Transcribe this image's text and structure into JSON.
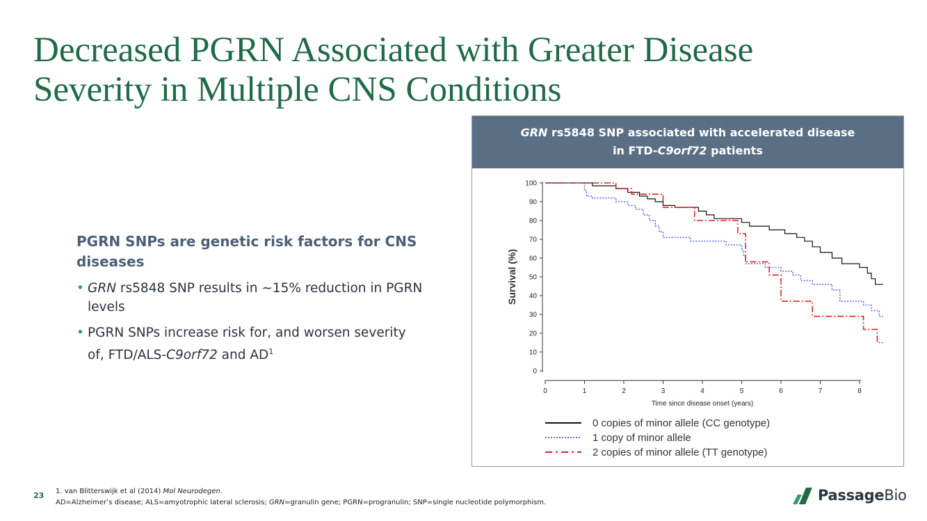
{
  "slide": {
    "title": "Decreased PGRN Associated with Greater Disease Severity in Multiple CNS Conditions",
    "page_number": "23"
  },
  "left": {
    "heading": "PGRN SNPs are genetic risk factors for CNS diseases",
    "bullets": [
      {
        "italic": "GRN",
        "rest": " rs5848 SNP results in ~15% reduction in PGRN levels"
      },
      {
        "pre": "PGRN SNPs increase risk for, and worsen severity of, FTD/ALS-",
        "italic": "C9orf72",
        "post": " and AD",
        "sup": "1"
      }
    ]
  },
  "panel": {
    "header_line1_italic": "GRN",
    "header_line1_rest": " rs5848 SNP associated with accelerated disease",
    "header_line2_pre": "in FTD-",
    "header_line2_italic": "C9orf72",
    "header_line2_post": " patients"
  },
  "footer": {
    "ref_pre": "1. van Blitterswijk et al (2014) ",
    "ref_italic": "Mol Neurodegen",
    "ref_post": ".",
    "abbr_pre": "AD=Alzheimer’s disease; ALS=amyotrophic lateral sclerosis; ",
    "abbr_italic": "GRN",
    "abbr_post": "=granulin gene; PGRN=progranulin; SNP=single nucleotide polymorphism."
  },
  "logo": {
    "brand_bold": "Passage",
    "brand_light": "Bio"
  },
  "chart_data": {
    "type": "line",
    "subtype": "kaplan-meier step",
    "xlabel": "Time since disease onset (years)",
    "ylabel": "Survival (%)",
    "xlim": [
      0,
      8
    ],
    "ylim": [
      0,
      100
    ],
    "xticks": [
      0,
      1,
      2,
      3,
      4,
      5,
      6,
      7,
      8
    ],
    "yticks": [
      0,
      10,
      20,
      30,
      40,
      50,
      60,
      70,
      80,
      90,
      100
    ],
    "series": [
      {
        "name": "0 copies of minor allele (CC genotype)",
        "color": "#111111",
        "style": "solid",
        "points": [
          [
            0,
            100
          ],
          [
            1.2,
            100
          ],
          [
            1.2,
            98.5
          ],
          [
            1.8,
            98.5
          ],
          [
            1.8,
            97
          ],
          [
            2.1,
            97
          ],
          [
            2.1,
            95
          ],
          [
            2.4,
            95
          ],
          [
            2.4,
            93
          ],
          [
            2.6,
            93
          ],
          [
            2.6,
            91.5
          ],
          [
            2.8,
            91.5
          ],
          [
            2.8,
            90
          ],
          [
            3.0,
            90
          ],
          [
            3.0,
            88
          ],
          [
            3.3,
            88
          ],
          [
            3.3,
            87
          ],
          [
            3.9,
            87
          ],
          [
            3.9,
            85
          ],
          [
            4.1,
            85
          ],
          [
            4.1,
            83
          ],
          [
            4.3,
            83
          ],
          [
            4.3,
            81
          ],
          [
            5.0,
            81
          ],
          [
            5.0,
            79
          ],
          [
            5.2,
            79
          ],
          [
            5.2,
            77
          ],
          [
            5.7,
            77
          ],
          [
            5.7,
            75
          ],
          [
            6.1,
            75
          ],
          [
            6.1,
            73
          ],
          [
            6.4,
            73
          ],
          [
            6.4,
            71
          ],
          [
            6.6,
            71
          ],
          [
            6.6,
            69
          ],
          [
            6.8,
            69
          ],
          [
            6.8,
            66
          ],
          [
            7.0,
            66
          ],
          [
            7.0,
            63
          ],
          [
            7.3,
            63
          ],
          [
            7.3,
            60
          ],
          [
            7.55,
            60
          ],
          [
            7.55,
            57
          ],
          [
            8.0,
            57
          ],
          [
            8.0,
            55
          ],
          [
            8.2,
            55
          ],
          [
            8.2,
            52
          ],
          [
            8.3,
            52
          ],
          [
            8.3,
            49
          ],
          [
            8.4,
            49
          ],
          [
            8.4,
            46
          ],
          [
            8.6,
            46
          ]
        ]
      },
      {
        "name": "1 copy of minor allele",
        "color": "#5b6fe0",
        "style": "dotted",
        "points": [
          [
            0,
            100
          ],
          [
            1.0,
            100
          ],
          [
            1.0,
            96
          ],
          [
            1.05,
            96
          ],
          [
            1.05,
            93
          ],
          [
            1.2,
            93
          ],
          [
            1.2,
            92
          ],
          [
            1.8,
            92
          ],
          [
            1.8,
            90
          ],
          [
            2.1,
            90
          ],
          [
            2.1,
            88
          ],
          [
            2.3,
            88
          ],
          [
            2.3,
            86
          ],
          [
            2.5,
            86
          ],
          [
            2.5,
            83
          ],
          [
            2.65,
            83
          ],
          [
            2.65,
            80
          ],
          [
            2.8,
            80
          ],
          [
            2.8,
            77
          ],
          [
            2.9,
            77
          ],
          [
            2.9,
            74
          ],
          [
            3.0,
            74
          ],
          [
            3.0,
            71
          ],
          [
            3.7,
            71
          ],
          [
            3.7,
            69
          ],
          [
            4.6,
            69
          ],
          [
            4.6,
            67
          ],
          [
            5.0,
            67
          ],
          [
            5.0,
            64
          ],
          [
            5.05,
            64
          ],
          [
            5.05,
            61
          ],
          [
            5.1,
            61
          ],
          [
            5.1,
            57
          ],
          [
            5.6,
            57
          ],
          [
            5.6,
            55
          ],
          [
            6.0,
            55
          ],
          [
            6.0,
            53
          ],
          [
            6.3,
            53
          ],
          [
            6.3,
            51
          ],
          [
            6.5,
            51
          ],
          [
            6.5,
            48
          ],
          [
            6.8,
            48
          ],
          [
            6.8,
            46
          ],
          [
            7.3,
            46
          ],
          [
            7.3,
            43
          ],
          [
            7.5,
            43
          ],
          [
            7.5,
            37
          ],
          [
            8.1,
            37
          ],
          [
            8.1,
            35
          ],
          [
            8.3,
            35
          ],
          [
            8.3,
            32
          ],
          [
            8.5,
            32
          ],
          [
            8.5,
            29
          ],
          [
            8.6,
            29
          ]
        ]
      },
      {
        "name": "2 copies of minor allele (TT genotype)",
        "color": "#dd2222",
        "style": "dashdot",
        "points": [
          [
            0,
            100
          ],
          [
            1.8,
            100
          ],
          [
            1.8,
            97
          ],
          [
            2.2,
            97
          ],
          [
            2.2,
            94
          ],
          [
            3.0,
            94
          ],
          [
            3.0,
            87
          ],
          [
            3.8,
            87
          ],
          [
            3.8,
            80
          ],
          [
            4.9,
            80
          ],
          [
            4.9,
            73
          ],
          [
            5.1,
            73
          ],
          [
            5.1,
            58
          ],
          [
            5.7,
            58
          ],
          [
            5.7,
            51
          ],
          [
            6.0,
            51
          ],
          [
            6.0,
            37
          ],
          [
            6.8,
            37
          ],
          [
            6.8,
            29
          ],
          [
            8.1,
            29
          ],
          [
            8.1,
            22
          ],
          [
            8.45,
            22
          ],
          [
            8.45,
            15
          ],
          [
            8.6,
            15
          ]
        ]
      }
    ]
  }
}
